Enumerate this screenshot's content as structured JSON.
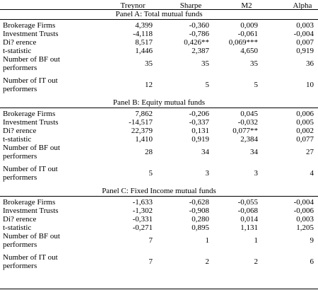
{
  "columns": [
    "Treynor",
    "Sharpe",
    "M2",
    "Alpha"
  ],
  "panels": [
    {
      "title": "Panel A: Total mutual funds",
      "rows": [
        {
          "label": "Brokerage Firms",
          "values": [
            "4,399",
            "-0,360",
            "0,009",
            "0,003"
          ]
        },
        {
          "label": "Investment Trusts",
          "values": [
            "-4,118",
            "-0,786",
            "-0,061",
            "-0,004"
          ]
        },
        {
          "label": "Di? erence",
          "values": [
            "8,517",
            "0,426**",
            "0,069***",
            "0,007"
          ]
        },
        {
          "label": "t-statistic",
          "values": [
            "1,446",
            "2,387",
            "4,650",
            "0,919"
          ]
        },
        {
          "label": "Number of BF out performers",
          "values": [
            "35",
            "35",
            "35",
            "36"
          ]
        },
        {
          "label": "Number of IT out performers",
          "values": [
            "12",
            "5",
            "5",
            "10"
          ]
        }
      ]
    },
    {
      "title": "Panel B: Equity mutual funds",
      "rows": [
        {
          "label": "Brokerage Firms",
          "values": [
            "7,862",
            "-0,206",
            "0,045",
            "0,006"
          ]
        },
        {
          "label": "Investment Trusts",
          "values": [
            "-14,517",
            "-0,337",
            "-0,032",
            "0,005"
          ]
        },
        {
          "label": "Di? erence",
          "values": [
            "22,379",
            "0,131",
            "0,077**",
            "0,002"
          ]
        },
        {
          "label": "t-statistic",
          "values": [
            "1,410",
            "0,919",
            "2,384",
            "0,077"
          ]
        },
        {
          "label": "Number of BF out performers",
          "values": [
            "28",
            "34",
            "34",
            "27"
          ]
        },
        {
          "label": "Number of IT out performers",
          "values": [
            "5",
            "3",
            "3",
            "4"
          ]
        }
      ]
    },
    {
      "title": "Panel C: Fixed Income mutual funds",
      "rows": [
        {
          "label": "Brokerage Firms",
          "values": [
            "-1,633",
            "-0,628",
            "-0,055",
            "-0,004"
          ]
        },
        {
          "label": "Investment Trusts",
          "values": [
            "-1,302",
            "-0,908",
            "-0,068",
            "-0,006"
          ]
        },
        {
          "label": "Di? erence",
          "values": [
            "-0,331",
            "0,280",
            "0,014",
            "0,003"
          ]
        },
        {
          "label": "t-statistic",
          "values": [
            "-0,271",
            "0,895",
            "1,131",
            "1,205"
          ]
        },
        {
          "label": "Number of BF out performers",
          "values": [
            "7",
            "1",
            "1",
            "9"
          ]
        },
        {
          "label": "Number of IT out performers",
          "values": [
            "7",
            "2",
            "2",
            "6"
          ]
        }
      ]
    }
  ]
}
